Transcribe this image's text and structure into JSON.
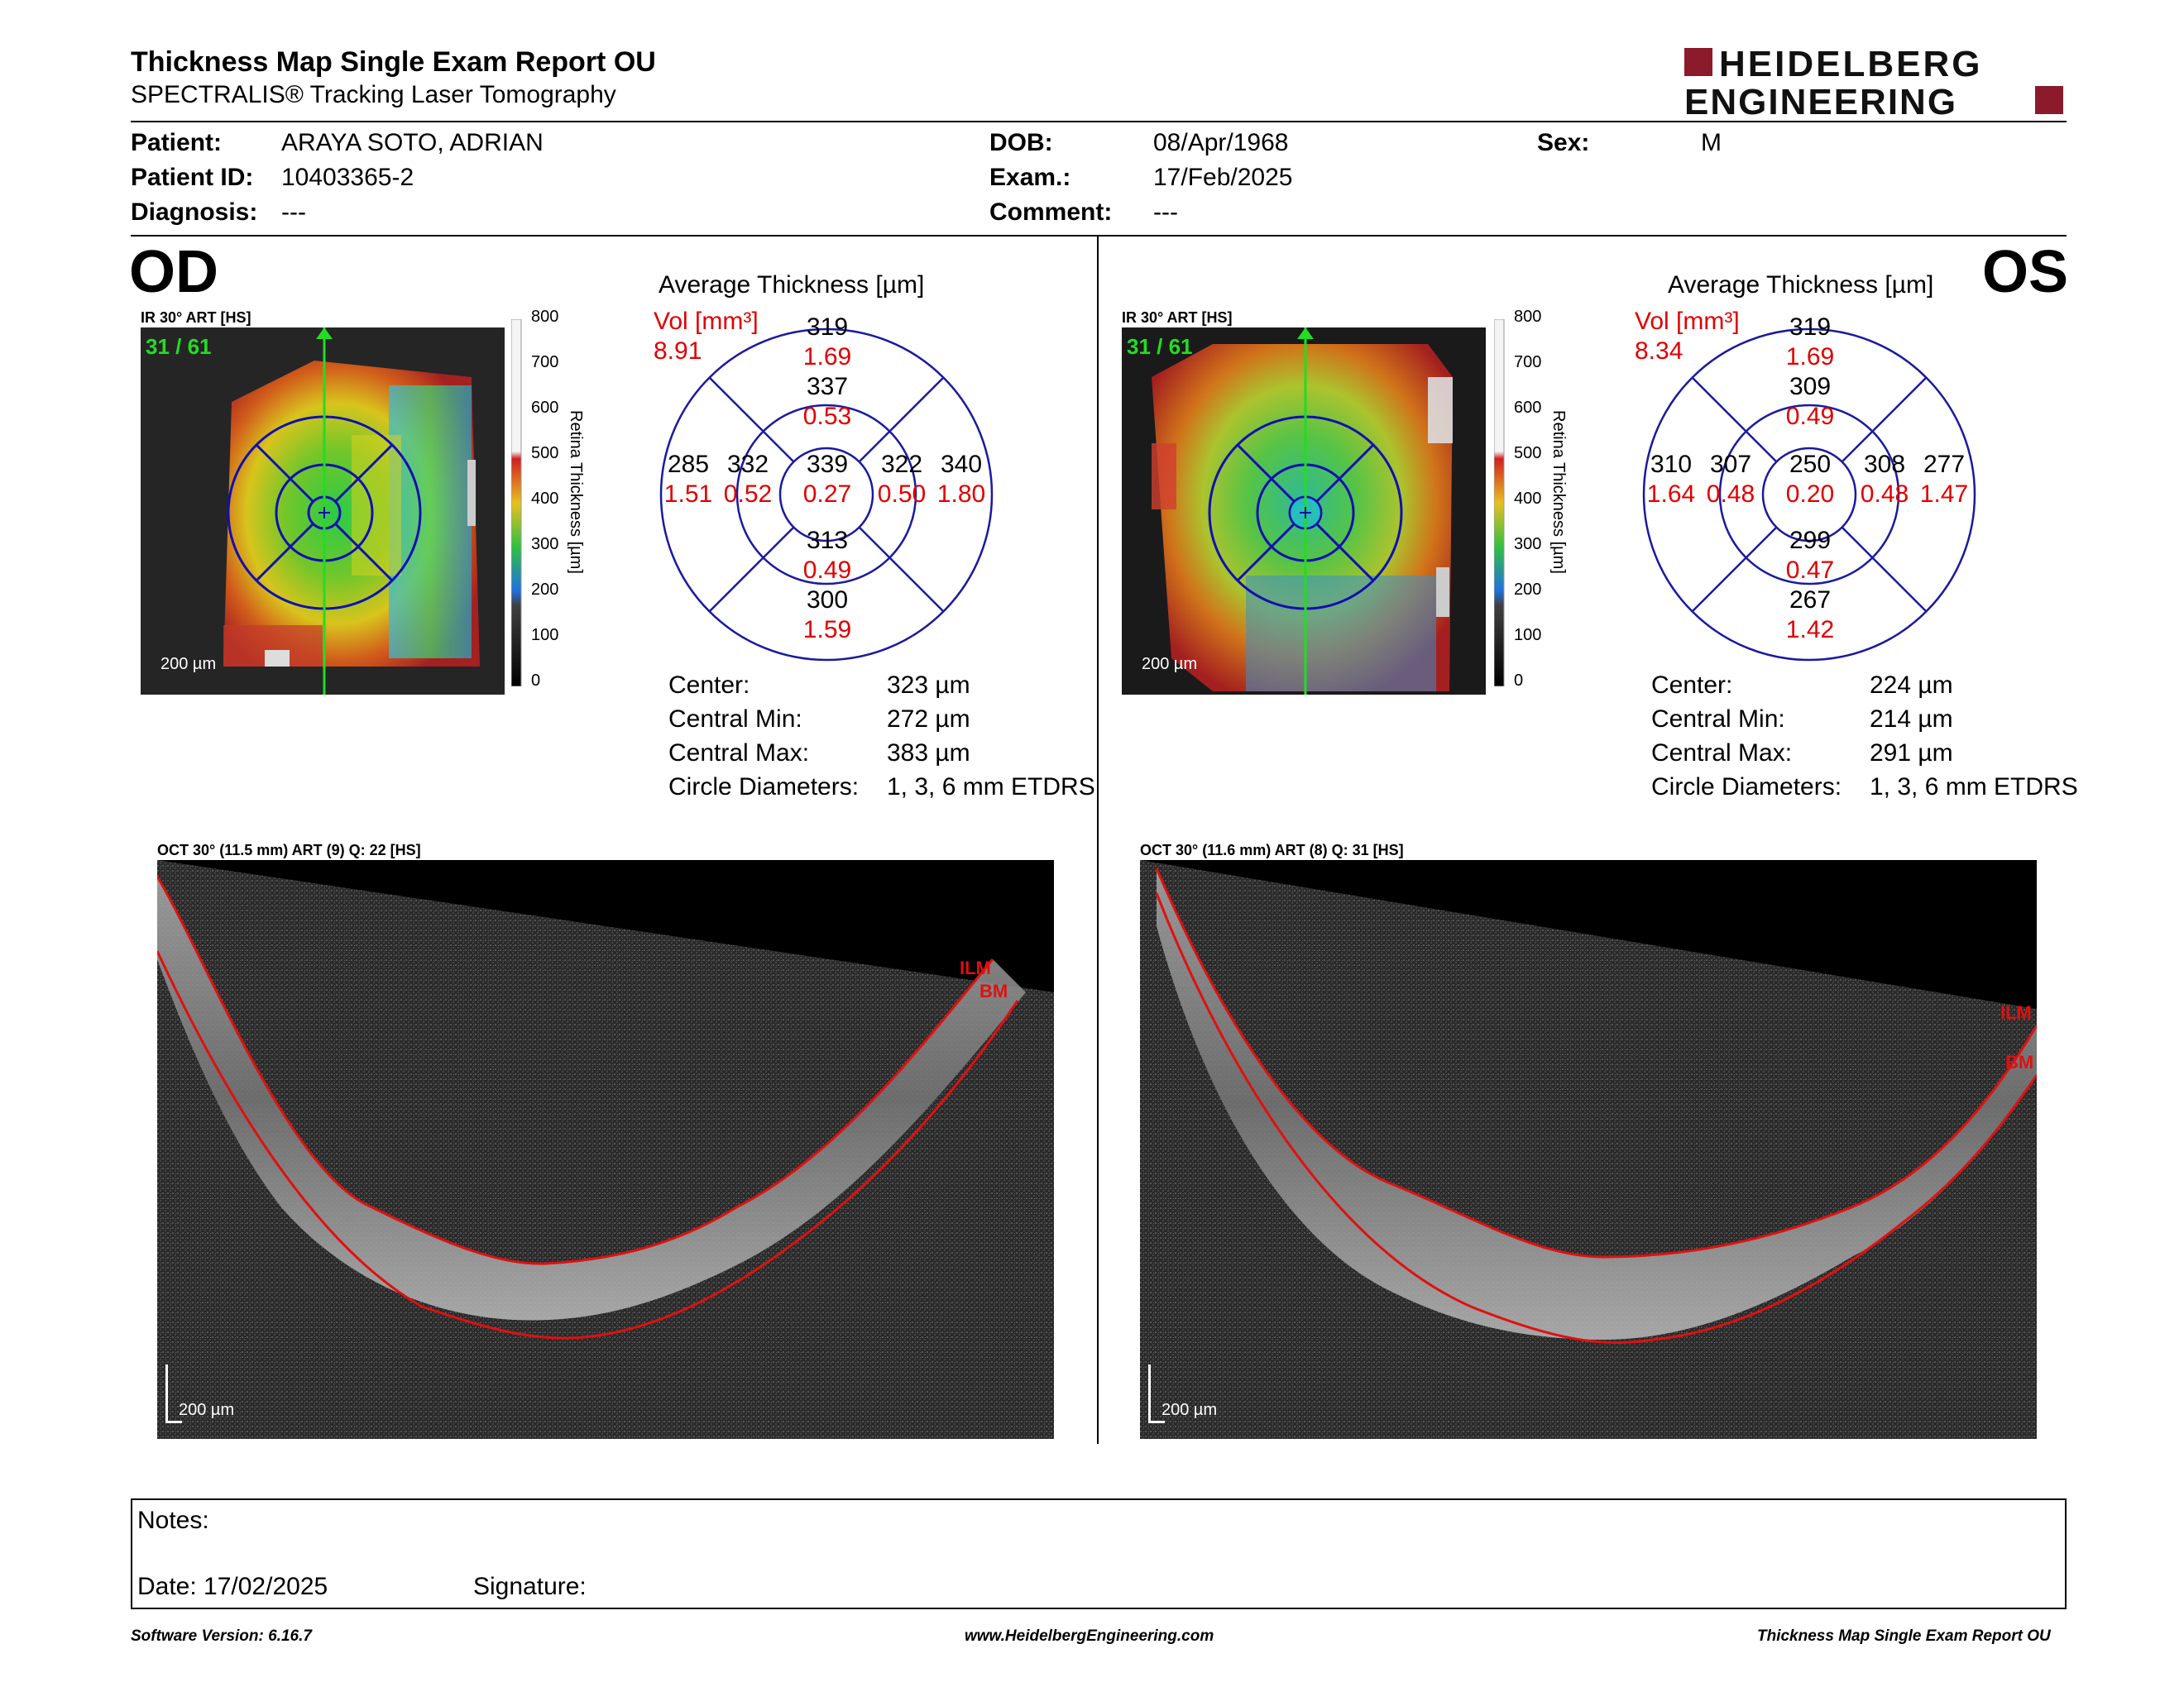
{
  "header": {
    "title": "Thickness Map Single Exam Report OU",
    "subtitle": "SPECTRALIS® Tracking Laser Tomography",
    "logo_line1": "HEIDELBERG",
    "logo_line2": "ENGINEERING"
  },
  "patient": {
    "patient_label": "Patient:",
    "patient_value": "ARAYA SOTO, ADRIAN",
    "id_label": "Patient ID:",
    "id_value": "10403365-2",
    "diagnosis_label": "Diagnosis:",
    "diagnosis_value": "---",
    "dob_label": "DOB:",
    "dob_value": "08/Apr/1968",
    "exam_label": "Exam.:",
    "exam_value": "17/Feb/2025",
    "comment_label": "Comment:",
    "comment_value": "---",
    "sex_label": "Sex:",
    "sex_value": "M"
  },
  "colorbar": {
    "ticks": [
      "800",
      "700",
      "600",
      "500",
      "400",
      "300",
      "200",
      "100",
      "0"
    ],
    "label": "Retina Thickness [µm]"
  },
  "od": {
    "eye": "OD",
    "ir_title": "IR 30° ART [HS]",
    "frame": "31 / 61",
    "scale": "200 µm",
    "avg_title": "Average Thickness [µm]",
    "vol_label": "Vol [mm³]",
    "vol_value": "8.91",
    "sectors": {
      "outer_sup": [
        "319",
        "1.69"
      ],
      "inner_sup": [
        "337",
        "0.53"
      ],
      "outer_temp": [
        "285",
        "1.51"
      ],
      "inner_temp": [
        "332",
        "0.52"
      ],
      "center": [
        "339",
        "0.27"
      ],
      "inner_nas": [
        "322",
        "0.50"
      ],
      "outer_nas": [
        "340",
        "1.80"
      ],
      "inner_inf": [
        "313",
        "0.49"
      ],
      "outer_inf": [
        "300",
        "1.59"
      ]
    },
    "stats": [
      {
        "label": "Center:",
        "value": "323 µm"
      },
      {
        "label": "Central Min:",
        "value": "272 µm"
      },
      {
        "label": "Central Max:",
        "value": "383 µm"
      },
      {
        "label": "Circle Diameters:",
        "value": "1, 3, 6 mm ETDRS"
      }
    ],
    "oct_title": "OCT 30° (11.5 mm) ART (9) Q: 22 [HS]",
    "oct_scale": "200 µm",
    "ilm": "ILM",
    "bm": "BM"
  },
  "os": {
    "eye": "OS",
    "ir_title": "IR 30° ART [HS]",
    "frame": "31 / 61",
    "scale": "200 µm",
    "avg_title": "Average Thickness [µm]",
    "vol_label": "Vol [mm³]",
    "vol_value": "8.34",
    "sectors": {
      "outer_sup": [
        "319",
        "1.69"
      ],
      "inner_sup": [
        "309",
        "0.49"
      ],
      "outer_temp": [
        "310",
        "1.64"
      ],
      "inner_temp": [
        "307",
        "0.48"
      ],
      "center": [
        "250",
        "0.20"
      ],
      "inner_nas": [
        "308",
        "0.48"
      ],
      "outer_nas": [
        "277",
        "1.47"
      ],
      "inner_inf": [
        "299",
        "0.47"
      ],
      "outer_inf": [
        "267",
        "1.42"
      ]
    },
    "stats": [
      {
        "label": "Center:",
        "value": "224 µm"
      },
      {
        "label": "Central Min:",
        "value": "214 µm"
      },
      {
        "label": "Central Max:",
        "value": "291 µm"
      },
      {
        "label": "Circle Diameters:",
        "value": "1, 3, 6 mm ETDRS"
      }
    ],
    "oct_title": "OCT 30° (11.6 mm) ART (8) Q: 31 [HS]",
    "oct_scale": "200 µm",
    "ilm": "ILM",
    "bm": "BM"
  },
  "notes": {
    "notes_label": "Notes:",
    "date_label": "Date: 17/02/2025",
    "signature_label": "Signature:"
  },
  "footer": {
    "software": "Software Version: 6.16.7",
    "website": "www.HeidelbergEngineering.com",
    "report": "Thickness Map Single Exam Report OU"
  },
  "colors": {
    "accent_red": "#e00000",
    "logo_red": "#8b1a2b",
    "chart_blue": "#1a1aa0"
  }
}
